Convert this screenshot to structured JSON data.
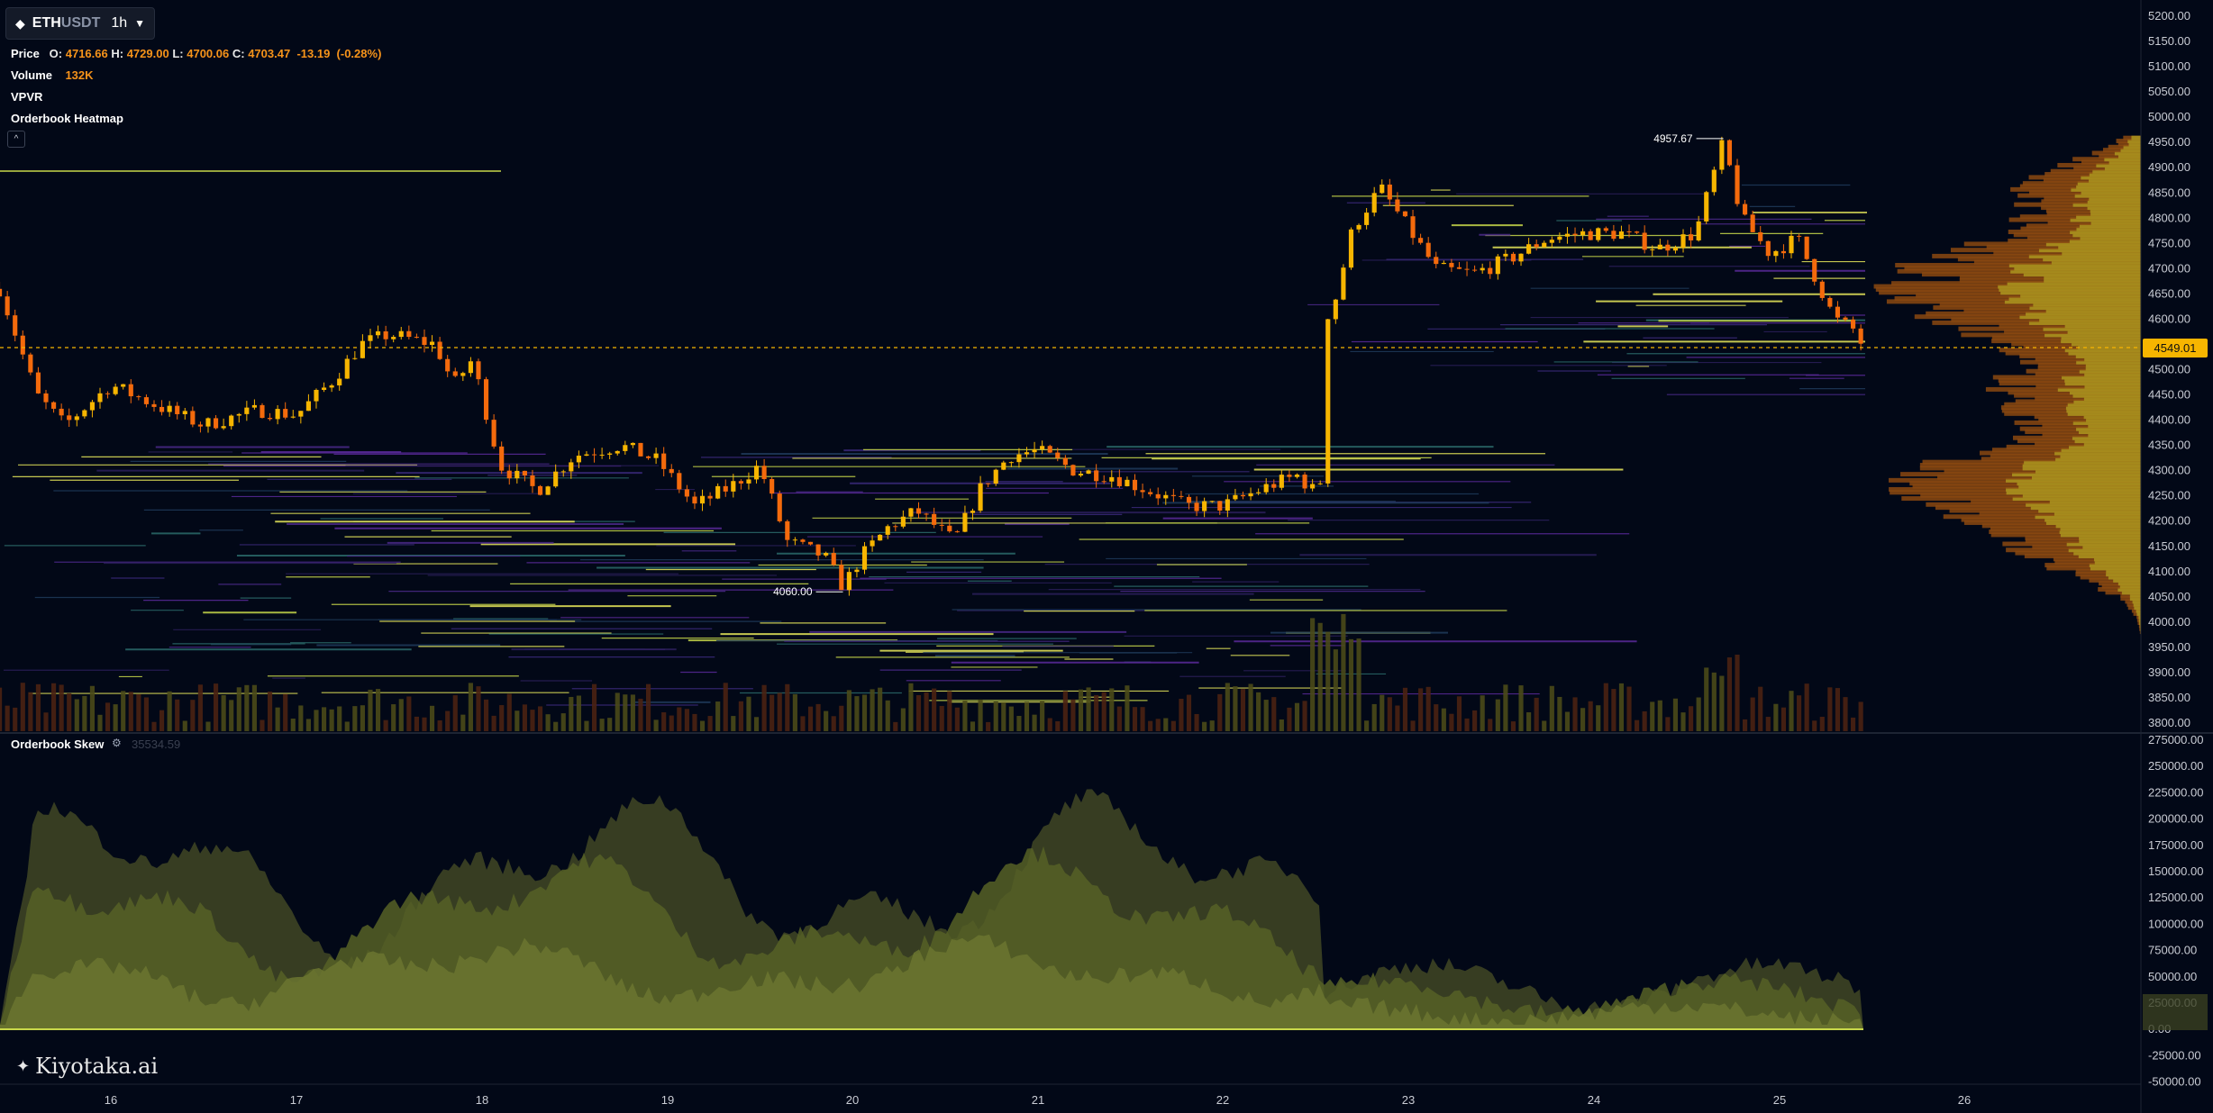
{
  "header": {
    "symbol_base": "ETH",
    "symbol_quote": "USDT",
    "timeframe": "1h",
    "icon": "diamond-icon",
    "dropdown_icon": "caret-down-icon"
  },
  "legend": {
    "price_label": "Price",
    "open_label": "O:",
    "open": "4716.66",
    "high_label": "H:",
    "high": "4729.00",
    "low_label": "L:",
    "low": "4700.06",
    "close_label": "C:",
    "close": "4703.47",
    "change": "-13.19",
    "change_pct": "(-0.28%)",
    "volume_label": "Volume",
    "volume": "132K",
    "vpvr_label": "VPVR",
    "heatmap_label": "Orderbook Heatmap"
  },
  "skew": {
    "title": "Orderbook Skew",
    "value": "35534.59"
  },
  "logo": "Kiyotaka.ai",
  "colors": {
    "background": "#020817",
    "candle_up": "#f7b500",
    "candle_down": "#f46a0c",
    "current_price_bg": "#f7b500",
    "skew_fill": "#6b7530"
  },
  "chart_data": {
    "type": "candlestick",
    "y_axis": {
      "ticks": [
        "5200.00",
        "5150.00",
        "5100.00",
        "5050.00",
        "5000.00",
        "4950.00",
        "4900.00",
        "4850.00",
        "4800.00",
        "4750.00",
        "4700.00",
        "4650.00",
        "4600.00",
        "4550.00",
        "4500.00",
        "4450.00",
        "4400.00",
        "4350.00",
        "4300.00",
        "4250.00",
        "4200.00",
        "4150.00",
        "4100.00",
        "4050.00",
        "4000.00",
        "3950.00",
        "3900.00",
        "3850.00",
        "3800.00"
      ],
      "range": [
        3790,
        5210
      ]
    },
    "x_axis": {
      "labels": [
        "16",
        "17",
        "18",
        "19",
        "20",
        "21",
        "22",
        "23",
        "24",
        "25",
        "26"
      ]
    },
    "current_price": "4549.01",
    "annotations": [
      {
        "label": "4957.67",
        "x": 24.7,
        "y": 4957.67
      },
      {
        "label": "4060.00",
        "x": 19.95,
        "y": 4060.0
      }
    ],
    "anchors": [
      [
        15.4,
        4660
      ],
      [
        15.6,
        4450
      ],
      [
        15.75,
        4390
      ],
      [
        16.0,
        4470
      ],
      [
        16.3,
        4420
      ],
      [
        16.5,
        4390
      ],
      [
        16.8,
        4420
      ],
      [
        17.0,
        4410
      ],
      [
        17.2,
        4480
      ],
      [
        17.35,
        4550
      ],
      [
        17.5,
        4570
      ],
      [
        17.75,
        4550
      ],
      [
        17.85,
        4470
      ],
      [
        17.95,
        4520
      ],
      [
        18.1,
        4310
      ],
      [
        18.3,
        4260
      ],
      [
        18.5,
        4330
      ],
      [
        18.75,
        4350
      ],
      [
        18.95,
        4320
      ],
      [
        19.15,
        4230
      ],
      [
        19.35,
        4270
      ],
      [
        19.5,
        4310
      ],
      [
        19.65,
        4160
      ],
      [
        19.85,
        4130
      ],
      [
        19.95,
        4070
      ],
      [
        20.05,
        4130
      ],
      [
        20.2,
        4190
      ],
      [
        20.35,
        4220
      ],
      [
        20.55,
        4160
      ],
      [
        20.7,
        4270
      ],
      [
        20.85,
        4330
      ],
      [
        21.0,
        4340
      ],
      [
        21.2,
        4300
      ],
      [
        21.4,
        4290
      ],
      [
        21.6,
        4260
      ],
      [
        21.8,
        4230
      ],
      [
        22.0,
        4230
      ],
      [
        22.25,
        4270
      ],
      [
        22.4,
        4290
      ],
      [
        22.52,
        4250
      ],
      [
        22.58,
        4600
      ],
      [
        22.7,
        4780
      ],
      [
        22.85,
        4860
      ],
      [
        23.0,
        4780
      ],
      [
        23.15,
        4700
      ],
      [
        23.35,
        4690
      ],
      [
        23.55,
        4720
      ],
      [
        23.75,
        4760
      ],
      [
        23.95,
        4770
      ],
      [
        24.15,
        4770
      ],
      [
        24.35,
        4740
      ],
      [
        24.55,
        4770
      ],
      [
        24.7,
        4950
      ],
      [
        24.8,
        4800
      ],
      [
        24.95,
        4730
      ],
      [
        25.1,
        4760
      ],
      [
        25.2,
        4680
      ],
      [
        25.3,
        4600
      ],
      [
        25.4,
        4580
      ],
      [
        25.45,
        4549
      ]
    ],
    "skew_series_note": ""
  }
}
